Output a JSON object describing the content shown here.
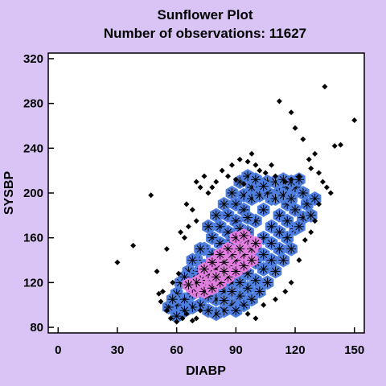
{
  "chart_data": {
    "type": "scatter",
    "title": "Sunflower Plot",
    "subtitle": "Number of observations: 11627",
    "xlabel": "DIABP",
    "ylabel": "SYSBP",
    "xlim": [
      -5,
      155
    ],
    "ylim": [
      75,
      325
    ],
    "xticks": [
      0,
      30,
      60,
      90,
      120,
      150
    ],
    "yticks": [
      80,
      120,
      160,
      200,
      240,
      280,
      320
    ],
    "grid": false,
    "colors": {
      "background": "#d9c4f5",
      "plot_area": "#ffffff",
      "single_point": "#000000",
      "dense_cell": "#4f7fe0",
      "very_dense_cell": "#e27ee0"
    },
    "single_points": [
      [
        30,
        138
      ],
      [
        38,
        153
      ],
      [
        47,
        198
      ],
      [
        50,
        130
      ],
      [
        51,
        110
      ],
      [
        52,
        103
      ],
      [
        53,
        112
      ],
      [
        55,
        95
      ],
      [
        55,
        150
      ],
      [
        57,
        88
      ],
      [
        58,
        120
      ],
      [
        60,
        85
      ],
      [
        61,
        128
      ],
      [
        63,
        88
      ],
      [
        65,
        92
      ],
      [
        68,
        86
      ],
      [
        70,
        88
      ],
      [
        72,
        95
      ],
      [
        62,
        165
      ],
      [
        64,
        160
      ],
      [
        66,
        170
      ],
      [
        70,
        175
      ],
      [
        65,
        190
      ],
      [
        70,
        210
      ],
      [
        72,
        205
      ],
      [
        78,
        205
      ],
      [
        80,
        210
      ],
      [
        83,
        220
      ],
      [
        88,
        225
      ],
      [
        92,
        230
      ],
      [
        96,
        228
      ],
      [
        98,
        235
      ],
      [
        100,
        225
      ],
      [
        102,
        220
      ],
      [
        105,
        218
      ],
      [
        108,
        225
      ],
      [
        110,
        215
      ],
      [
        112,
        282
      ],
      [
        118,
        272
      ],
      [
        120,
        258
      ],
      [
        124,
        248
      ],
      [
        128,
        222
      ],
      [
        132,
        218
      ],
      [
        134,
        210
      ],
      [
        136,
        205
      ],
      [
        138,
        200
      ],
      [
        140,
        242
      ],
      [
        143,
        243
      ],
      [
        150,
        265
      ],
      [
        135,
        295
      ],
      [
        130,
        235
      ],
      [
        127,
        230
      ],
      [
        122,
        215
      ],
      [
        118,
        212
      ],
      [
        115,
        210
      ],
      [
        100,
        88
      ],
      [
        96,
        92
      ],
      [
        104,
        100
      ],
      [
        110,
        105
      ],
      [
        115,
        112
      ],
      [
        118,
        120
      ],
      [
        122,
        140
      ],
      [
        125,
        158
      ],
      [
        128,
        165
      ],
      [
        130,
        175
      ],
      [
        132,
        190
      ],
      [
        76,
        200
      ],
      [
        74,
        215
      ],
      [
        68,
        185
      ],
      [
        86,
        215
      ],
      [
        90,
        212
      ],
      [
        94,
        208
      ]
    ],
    "dense_cells": [
      [
        60,
        100
      ],
      [
        64,
        105
      ],
      [
        68,
        110
      ],
      [
        72,
        118
      ],
      [
        76,
        125
      ],
      [
        80,
        130
      ],
      [
        84,
        140
      ],
      [
        88,
        148
      ],
      [
        92,
        155
      ],
      [
        96,
        165
      ],
      [
        100,
        175
      ],
      [
        104,
        185
      ],
      [
        108,
        195
      ],
      [
        112,
        200
      ],
      [
        116,
        205
      ],
      [
        120,
        205
      ],
      [
        124,
        200
      ],
      [
        126,
        190
      ],
      [
        124,
        178
      ],
      [
        120,
        168
      ],
      [
        116,
        160
      ],
      [
        112,
        150
      ],
      [
        108,
        140
      ],
      [
        104,
        132
      ],
      [
        100,
        122
      ],
      [
        96,
        115
      ],
      [
        92,
        108
      ],
      [
        88,
        100
      ],
      [
        84,
        95
      ],
      [
        80,
        92
      ],
      [
        76,
        95
      ],
      [
        72,
        100
      ],
      [
        68,
        98
      ],
      [
        64,
        95
      ],
      [
        60,
        110
      ],
      [
        62,
        120
      ],
      [
        66,
        130
      ],
      [
        70,
        140
      ],
      [
        74,
        150
      ],
      [
        78,
        160
      ],
      [
        82,
        170
      ],
      [
        86,
        180
      ],
      [
        90,
        190
      ],
      [
        94,
        198
      ],
      [
        98,
        205
      ],
      [
        102,
        208
      ],
      [
        106,
        210
      ],
      [
        110,
        210
      ],
      [
        114,
        212
      ],
      [
        118,
        210
      ],
      [
        122,
        212
      ],
      [
        116,
        190
      ],
      [
        112,
        180
      ],
      [
        108,
        170
      ],
      [
        104,
        160
      ],
      [
        100,
        150
      ],
      [
        96,
        140
      ],
      [
        92,
        130
      ],
      [
        88,
        120
      ],
      [
        84,
        112
      ],
      [
        80,
        105
      ],
      [
        76,
        108
      ],
      [
        72,
        112
      ],
      [
        68,
        120
      ],
      [
        64,
        125
      ],
      [
        70,
        128
      ],
      [
        74,
        135
      ],
      [
        78,
        145
      ],
      [
        82,
        155
      ],
      [
        86,
        165
      ],
      [
        90,
        175
      ],
      [
        94,
        185
      ],
      [
        98,
        195
      ],
      [
        102,
        198
      ],
      [
        106,
        200
      ],
      [
        110,
        195
      ],
      [
        114,
        198
      ],
      [
        118,
        195
      ],
      [
        120,
        185
      ],
      [
        116,
        175
      ],
      [
        112,
        165
      ],
      [
        108,
        155
      ],
      [
        104,
        145
      ],
      [
        100,
        138
      ],
      [
        96,
        128
      ],
      [
        92,
        120
      ],
      [
        88,
        112
      ],
      [
        84,
        104
      ],
      [
        60,
        90
      ],
      [
        56,
        98
      ],
      [
        58,
        105
      ],
      [
        96,
        178
      ],
      [
        92,
        168
      ],
      [
        88,
        158
      ],
      [
        84,
        148
      ],
      [
        80,
        140
      ],
      [
        76,
        135
      ],
      [
        72,
        130
      ],
      [
        68,
        140
      ],
      [
        72,
        150
      ],
      [
        76,
        170
      ],
      [
        80,
        180
      ],
      [
        84,
        190
      ],
      [
        88,
        200
      ],
      [
        92,
        210
      ],
      [
        96,
        215
      ],
      [
        100,
        212
      ],
      [
        104,
        206
      ],
      [
        130,
        195
      ],
      [
        128,
        180
      ],
      [
        122,
        170
      ],
      [
        118,
        150
      ],
      [
        114,
        140
      ],
      [
        110,
        130
      ],
      [
        106,
        120
      ],
      [
        102,
        112
      ],
      [
        98,
        105
      ],
      [
        94,
        100
      ],
      [
        90,
        95
      ]
    ],
    "very_dense_cells": [
      [
        70,
        112
      ],
      [
        74,
        118
      ],
      [
        78,
        122
      ],
      [
        82,
        128
      ],
      [
        86,
        135
      ],
      [
        90,
        140
      ],
      [
        94,
        145
      ],
      [
        98,
        150
      ],
      [
        96,
        158
      ],
      [
        92,
        150
      ],
      [
        88,
        145
      ],
      [
        84,
        138
      ],
      [
        80,
        132
      ],
      [
        76,
        128
      ],
      [
        72,
        122
      ],
      [
        68,
        115
      ],
      [
        74,
        112
      ],
      [
        78,
        115
      ],
      [
        82,
        120
      ],
      [
        86,
        125
      ],
      [
        90,
        130
      ],
      [
        94,
        135
      ],
      [
        98,
        140
      ],
      [
        100,
        155
      ],
      [
        86,
        150
      ],
      [
        82,
        145
      ],
      [
        78,
        138
      ],
      [
        74,
        132
      ],
      [
        70,
        120
      ],
      [
        66,
        118
      ],
      [
        90,
        160
      ],
      [
        94,
        162
      ],
      [
        84,
        130
      ],
      [
        80,
        125
      ]
    ]
  }
}
